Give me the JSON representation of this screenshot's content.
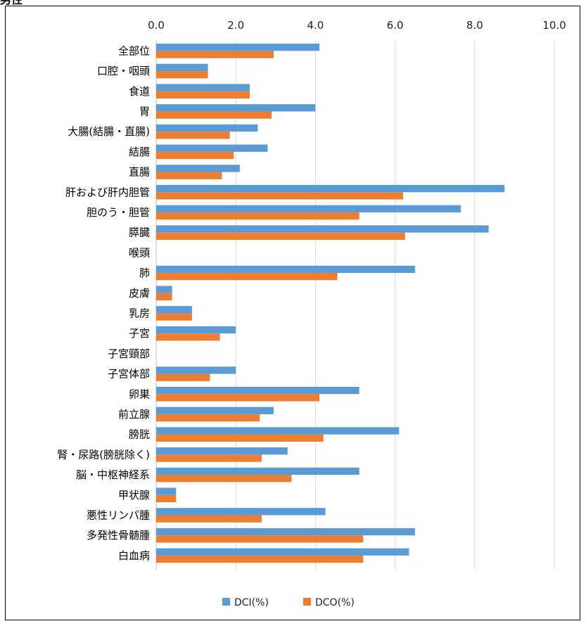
{
  "corner_text": "男性",
  "colors": {
    "dci": "#5B9BD5",
    "dco": "#ED7D31",
    "grid": "#D9D9D9"
  },
  "chart_data": {
    "type": "bar",
    "orientation": "horizontal",
    "title": "",
    "xlabel": "",
    "ylabel": "",
    "xlim": [
      0,
      10
    ],
    "x_ticks": [
      "0.0",
      "2.0",
      "4.0",
      "6.0",
      "8.0",
      "10.0"
    ],
    "x_axis_position": "top",
    "grid": true,
    "legend_position": "bottom",
    "categories": [
      "全部位",
      "口腔・咽頭",
      "食道",
      "胃",
      "大腸(結腸・直腸)",
      "結腸",
      "直腸",
      "肝および肝内胆管",
      "胆のう・胆管",
      "膵臓",
      "喉頭",
      "肺",
      "皮膚",
      "乳房",
      "子宮",
      "子宮頸部",
      "子宮体部",
      "卵巣",
      "前立腺",
      "膀胱",
      "腎・尿路(膀胱除く)",
      "脳・中枢神経系",
      "甲状腺",
      "悪性リンパ腫",
      "多発性骨髄腫",
      "白血病"
    ],
    "series": [
      {
        "name": "DCI(%)",
        "values": [
          4.1,
          1.3,
          2.35,
          4.0,
          2.55,
          2.8,
          2.1,
          8.75,
          7.65,
          8.35,
          null,
          6.5,
          0.4,
          0.9,
          2.0,
          null,
          2.0,
          5.1,
          2.95,
          6.1,
          3.3,
          5.1,
          0.5,
          4.25,
          6.5,
          6.35
        ]
      },
      {
        "name": "DCO(%)",
        "values": [
          2.95,
          1.3,
          2.35,
          2.9,
          1.85,
          1.95,
          1.65,
          6.2,
          5.1,
          6.25,
          null,
          4.55,
          0.4,
          0.9,
          1.6,
          null,
          1.35,
          4.1,
          2.6,
          4.2,
          2.65,
          3.4,
          0.5,
          2.65,
          5.2,
          5.2
        ]
      }
    ]
  }
}
